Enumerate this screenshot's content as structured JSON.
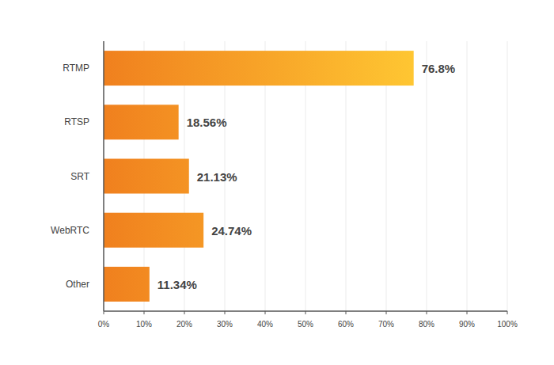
{
  "chart_data": {
    "type": "bar",
    "orientation": "horizontal",
    "categories": [
      "RTMP",
      "RTSP",
      "SRT",
      "WebRTC",
      "Other"
    ],
    "values": [
      76.8,
      18.56,
      21.13,
      24.74,
      11.34
    ],
    "value_labels": [
      "76.8%",
      "18.56%",
      "21.13%",
      "24.74%",
      "11.34%"
    ],
    "data_labels": true,
    "color": "#f0801e",
    "xlim": [
      0,
      100
    ],
    "xticks": [
      {
        "value": 0,
        "label": "0%"
      },
      {
        "value": 10,
        "label": "10%"
      },
      {
        "value": 20,
        "label": "20%"
      },
      {
        "value": 30,
        "label": "30%"
      },
      {
        "value": 40,
        "label": "40%"
      },
      {
        "value": 50,
        "label": "50%"
      },
      {
        "value": 60,
        "label": "60%"
      },
      {
        "value": 70,
        "label": "70%"
      },
      {
        "value": 80,
        "label": "80%"
      },
      {
        "value": 90,
        "label": "90%"
      },
      {
        "value": 100,
        "label": "100%"
      }
    ],
    "grid": true
  }
}
